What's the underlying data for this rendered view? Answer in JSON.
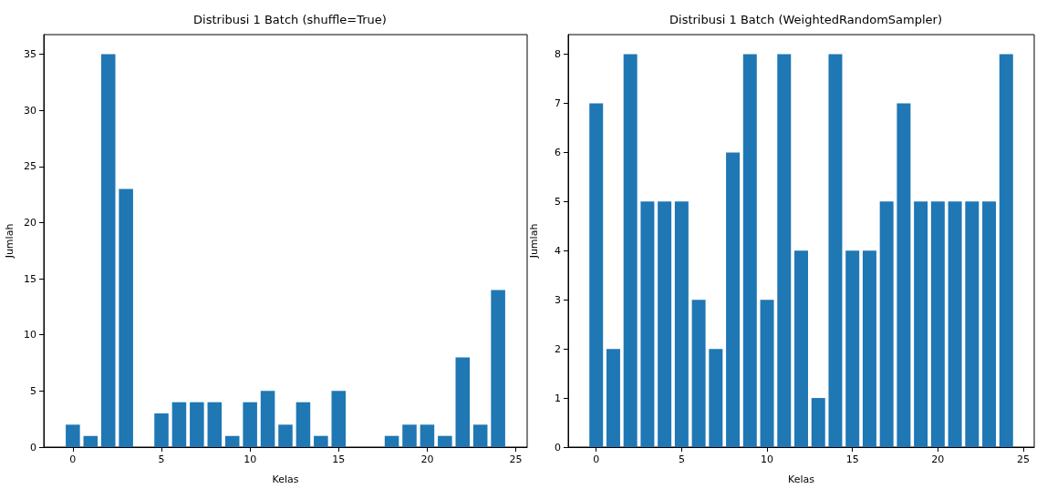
{
  "chart_data": [
    {
      "type": "bar",
      "title": "Distribusi 1 Batch (shuffle=True)",
      "xlabel": "Kelas",
      "ylabel": "Jumlah",
      "color": "#1f77b4",
      "x": [
        0,
        1,
        2,
        3,
        4,
        5,
        6,
        7,
        8,
        9,
        10,
        11,
        12,
        13,
        14,
        15,
        16,
        17,
        18,
        19,
        20,
        21,
        22,
        23,
        24
      ],
      "values": [
        2,
        1,
        35,
        23,
        0,
        3,
        4,
        4,
        4,
        1,
        4,
        5,
        2,
        4,
        1,
        5,
        0,
        0,
        1,
        2,
        2,
        1,
        8,
        2,
        14
      ],
      "xlim": [
        -1.64,
        25.64
      ],
      "xticks": [
        0,
        5,
        10,
        15,
        20,
        25
      ],
      "ylim": [
        0,
        36.75
      ],
      "yticks": [
        0,
        5,
        10,
        15,
        20,
        25,
        30,
        35
      ]
    },
    {
      "type": "bar",
      "title": "Distribusi 1 Batch (WeightedRandomSampler)",
      "xlabel": "Kelas",
      "ylabel": "Jumlah",
      "color": "#1f77b4",
      "x": [
        0,
        1,
        2,
        3,
        4,
        5,
        6,
        7,
        8,
        9,
        10,
        11,
        12,
        13,
        14,
        15,
        16,
        17,
        18,
        19,
        20,
        21,
        22,
        23,
        24
      ],
      "values": [
        7,
        2,
        8,
        5,
        5,
        5,
        3,
        2,
        6,
        8,
        3,
        8,
        4,
        1,
        8,
        4,
        4,
        5,
        7,
        5,
        5,
        5,
        5,
        5,
        8
      ],
      "xlim": [
        -1.64,
        25.64
      ],
      "xticks": [
        0,
        5,
        10,
        15,
        20,
        25
      ],
      "ylim": [
        0,
        8.4
      ],
      "yticks": [
        0,
        1,
        2,
        3,
        4,
        5,
        6,
        7,
        8
      ]
    }
  ]
}
